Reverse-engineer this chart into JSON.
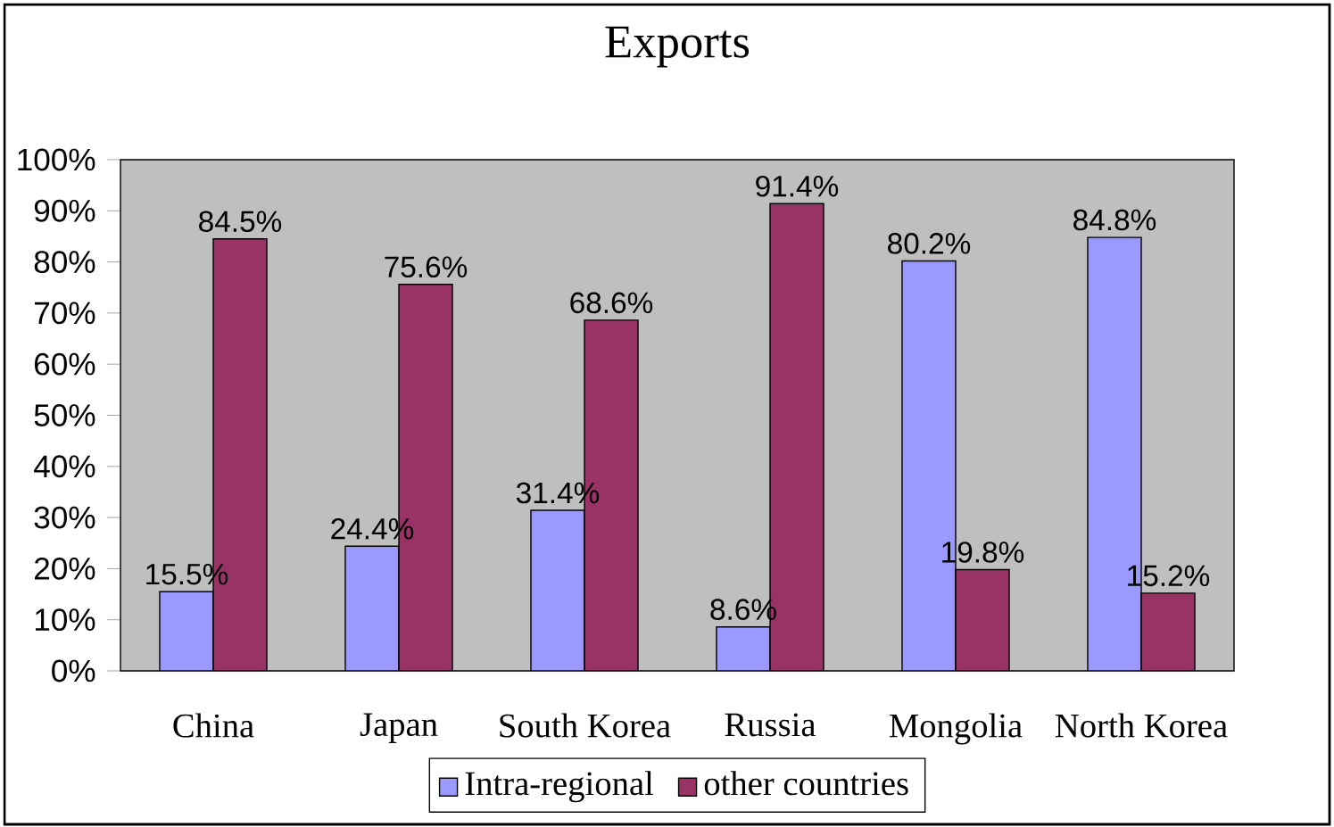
{
  "chart_data": {
    "type": "bar",
    "title": "Exports",
    "categories": [
      "China",
      "Japan",
      "South Korea",
      "Russia",
      "Mongolia",
      "North Korea"
    ],
    "series": [
      {
        "name": "Intra-regional",
        "color": "#9999ff",
        "values": [
          15.5,
          24.4,
          31.4,
          8.6,
          80.2,
          84.8
        ],
        "value_labels": [
          "15.5%",
          "24.4%",
          "31.4%",
          "8.6%",
          "80.2%",
          "84.8%"
        ]
      },
      {
        "name": "other countries",
        "color": "#993366",
        "values": [
          84.5,
          75.6,
          68.6,
          91.4,
          19.8,
          15.2
        ],
        "value_labels": [
          "84.5%",
          "75.6%",
          "68.6%",
          "91.4%",
          "19.8%",
          "15.2%"
        ]
      }
    ],
    "ylim": [
      0,
      100
    ],
    "yticks": [
      {
        "value": 0,
        "label": "0%"
      },
      {
        "value": 10,
        "label": "10%"
      },
      {
        "value": 20,
        "label": "20%"
      },
      {
        "value": 30,
        "label": "30%"
      },
      {
        "value": 40,
        "label": "40%"
      },
      {
        "value": 50,
        "label": "50%"
      },
      {
        "value": 60,
        "label": "60%"
      },
      {
        "value": 70,
        "label": "70%"
      },
      {
        "value": 80,
        "label": "80%"
      },
      {
        "value": 90,
        "label": "90%"
      },
      {
        "value": 100,
        "label": "100%"
      }
    ],
    "legend": "bottom"
  }
}
